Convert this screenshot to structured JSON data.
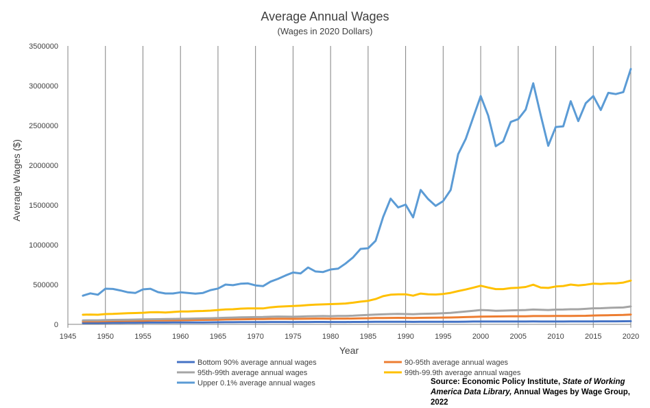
{
  "chart_data": {
    "type": "line",
    "title": "Average Annual Wages",
    "subtitle": "(Wages in 2020  Dollars)",
    "xlabel": "Year",
    "ylabel": "Average Wages ($)",
    "xlim": [
      1945,
      2020
    ],
    "ylim": [
      0,
      3500000
    ],
    "x_ticks": [
      1945,
      1950,
      1955,
      1960,
      1965,
      1970,
      1975,
      1980,
      1985,
      1990,
      1995,
      2000,
      2005,
      2010,
      2015,
      2020
    ],
    "y_ticks": [
      0,
      500000,
      1000000,
      1500000,
      2000000,
      2500000,
      3000000,
      3500000
    ],
    "grid": "vertical",
    "legend_position": "bottom",
    "x": [
      1947,
      1948,
      1949,
      1950,
      1951,
      1952,
      1953,
      1954,
      1955,
      1956,
      1957,
      1958,
      1959,
      1960,
      1961,
      1962,
      1963,
      1964,
      1965,
      1966,
      1967,
      1968,
      1969,
      1970,
      1971,
      1972,
      1973,
      1974,
      1975,
      1976,
      1977,
      1978,
      1979,
      1980,
      1981,
      1982,
      1983,
      1984,
      1985,
      1986,
      1987,
      1988,
      1989,
      1990,
      1991,
      1992,
      1993,
      1994,
      1995,
      1996,
      1997,
      1998,
      1999,
      2000,
      2001,
      2002,
      2003,
      2004,
      2005,
      2006,
      2007,
      2008,
      2009,
      2010,
      2011,
      2012,
      2013,
      2014,
      2015,
      2016,
      2017,
      2018,
      2019,
      2020
    ],
    "series": [
      {
        "name": "Bottom 90% average annual wages",
        "color": "#4472C4",
        "values": [
          17000,
          17500,
          17500,
          18500,
          19500,
          20000,
          20500,
          20500,
          21500,
          22000,
          22500,
          22500,
          23000,
          23500,
          23500,
          24000,
          24500,
          25000,
          25500,
          26500,
          27000,
          27500,
          28000,
          28000,
          28500,
          29000,
          29500,
          29000,
          28500,
          29000,
          29500,
          30000,
          30000,
          29500,
          29500,
          29500,
          30000,
          30500,
          31000,
          31500,
          31500,
          32000,
          32000,
          31500,
          31000,
          31500,
          31500,
          32000,
          32000,
          32500,
          33000,
          34000,
          35000,
          35500,
          35500,
          35500,
          35500,
          35500,
          35500,
          35500,
          36000,
          35500,
          35500,
          35500,
          35500,
          36000,
          36000,
          36500,
          37000,
          37500,
          38000,
          38000,
          38500,
          40000
        ]
      },
      {
        "name": "90-95th average annual wages",
        "color": "#ED7D31",
        "values": [
          37000,
          38000,
          38000,
          40000,
          42000,
          43000,
          44000,
          45000,
          46000,
          48000,
          49000,
          49500,
          51000,
          52000,
          53000,
          55000,
          56000,
          57000,
          59000,
          61000,
          62000,
          64000,
          65000,
          66000,
          67000,
          69000,
          70000,
          70000,
          69000,
          70000,
          71000,
          72000,
          72000,
          71000,
          72000,
          72000,
          73000,
          75000,
          77000,
          79000,
          80000,
          81000,
          82000,
          81000,
          80000,
          82000,
          83000,
          84000,
          85000,
          86000,
          88000,
          91000,
          94000,
          97000,
          98000,
          99000,
          100000,
          101000,
          101000,
          102000,
          104000,
          104000,
          104000,
          105000,
          105000,
          106000,
          107000,
          108000,
          111000,
          113000,
          115000,
          116000,
          118000,
          123000
        ]
      },
      {
        "name": "95th-99th average annual wages",
        "color": "#A5A5A5",
        "values": [
          50000,
          51000,
          51000,
          54000,
          56000,
          57000,
          59000,
          60000,
          62000,
          64000,
          65000,
          66000,
          68000,
          70000,
          71000,
          73000,
          75000,
          77000,
          80000,
          83000,
          85000,
          88000,
          90000,
          91000,
          92000,
          96000,
          98000,
          97000,
          96000,
          98000,
          101000,
          103000,
          104000,
          103000,
          105000,
          106000,
          109000,
          114000,
          118000,
          122000,
          126000,
          129000,
          131000,
          129000,
          127000,
          132000,
          134000,
          136000,
          140000,
          145000,
          153000,
          162000,
          171000,
          180000,
          177000,
          171000,
          172000,
          176000,
          178000,
          180000,
          186000,
          183000,
          180000,
          185000,
          186000,
          190000,
          190000,
          195000,
          202000,
          203000,
          207000,
          210000,
          212000,
          225000
        ]
      },
      {
        "name": "99th-99.9th average annual wages",
        "color": "#FFC000",
        "values": [
          121000,
          123000,
          121000,
          129000,
          131000,
          135000,
          140000,
          142000,
          146000,
          152000,
          153000,
          149000,
          155000,
          162000,
          162000,
          166000,
          168000,
          172000,
          180000,
          187000,
          190000,
          197000,
          200000,
          201000,
          200000,
          214000,
          222000,
          227000,
          230000,
          235000,
          242000,
          248000,
          251000,
          254000,
          258000,
          262000,
          272000,
          285000,
          296000,
          318000,
          354000,
          372000,
          378000,
          378000,
          360000,
          387000,
          378000,
          375000,
          382000,
          396000,
          418000,
          438000,
          460000,
          485000,
          463000,
          443000,
          443000,
          456000,
          460000,
          470000,
          498000,
          462000,
          458000,
          476000,
          482000,
          500000,
          490000,
          498000,
          512000,
          508000,
          515000,
          515000,
          525000,
          550000
        ]
      },
      {
        "name": "Upper 0.1% average annual wages",
        "color": "#5B9BD5",
        "values": [
          360000,
          390000,
          372000,
          448000,
          445000,
          426000,
          403000,
          395000,
          440000,
          447000,
          405000,
          388000,
          388000,
          403000,
          395000,
          385000,
          395000,
          430000,
          450000,
          500000,
          492000,
          510000,
          515000,
          490000,
          480000,
          537000,
          572000,
          615000,
          652000,
          640000,
          715000,
          665000,
          658000,
          690000,
          700000,
          765000,
          842000,
          948000,
          957000,
          1050000,
          1350000,
          1580000,
          1470000,
          1505000,
          1345000,
          1690000,
          1575000,
          1490000,
          1550000,
          1690000,
          2140000,
          2330000,
          2600000,
          2870000,
          2625000,
          2240000,
          2300000,
          2545000,
          2580000,
          2700000,
          3030000,
          2630000,
          2245000,
          2480000,
          2490000,
          2805000,
          2555000,
          2780000,
          2870000,
          2695000,
          2910000,
          2895000,
          2920000,
          3210000
        ]
      }
    ]
  },
  "source": {
    "prefix": "Source: Economic Policy Institute,",
    "title_italic": "State of Working America Data Library,",
    "suffix": "Annual Wages by Wage Group, 2022"
  }
}
